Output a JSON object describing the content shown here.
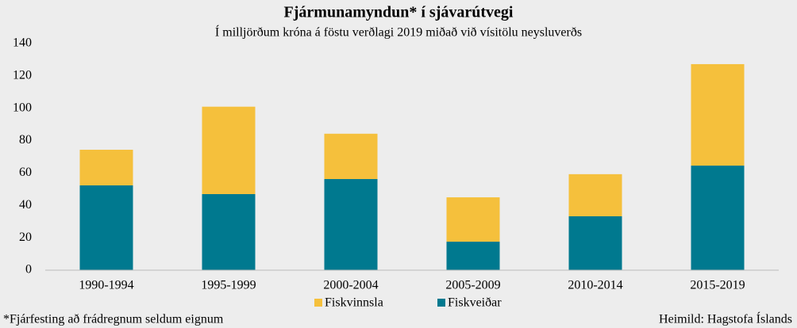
{
  "chart_data": {
    "type": "stacked_bar",
    "title": "Fjármunamyndun* í sjávarútvegi",
    "subtitle": "Í milljörðum  króna á föstu verðlagi  2019 miðað við vísitölu neysluverðs",
    "categories": [
      "1990-1994",
      "1995-1999",
      "2000-2004",
      "2005-2009",
      "2010-2014",
      "2015-2019"
    ],
    "series": [
      {
        "name": "Fiskvinnsla",
        "color": "#f5c03c",
        "values": [
          22,
          54,
          28,
          27.4,
          26,
          62.7
        ]
      },
      {
        "name": "Fiskveiðar",
        "color": "#00798f",
        "values": [
          52.4,
          47,
          56.3,
          17.6,
          33.3,
          64.6
        ]
      }
    ],
    "ylim": [
      0,
      140
    ],
    "yticks": [
      0,
      20,
      40,
      60,
      80,
      100,
      120,
      140
    ],
    "footnote": "*Fjárfesting  að frádregnum  seldum eignum",
    "source": "Heimild:  Hagstofa Íslands"
  }
}
